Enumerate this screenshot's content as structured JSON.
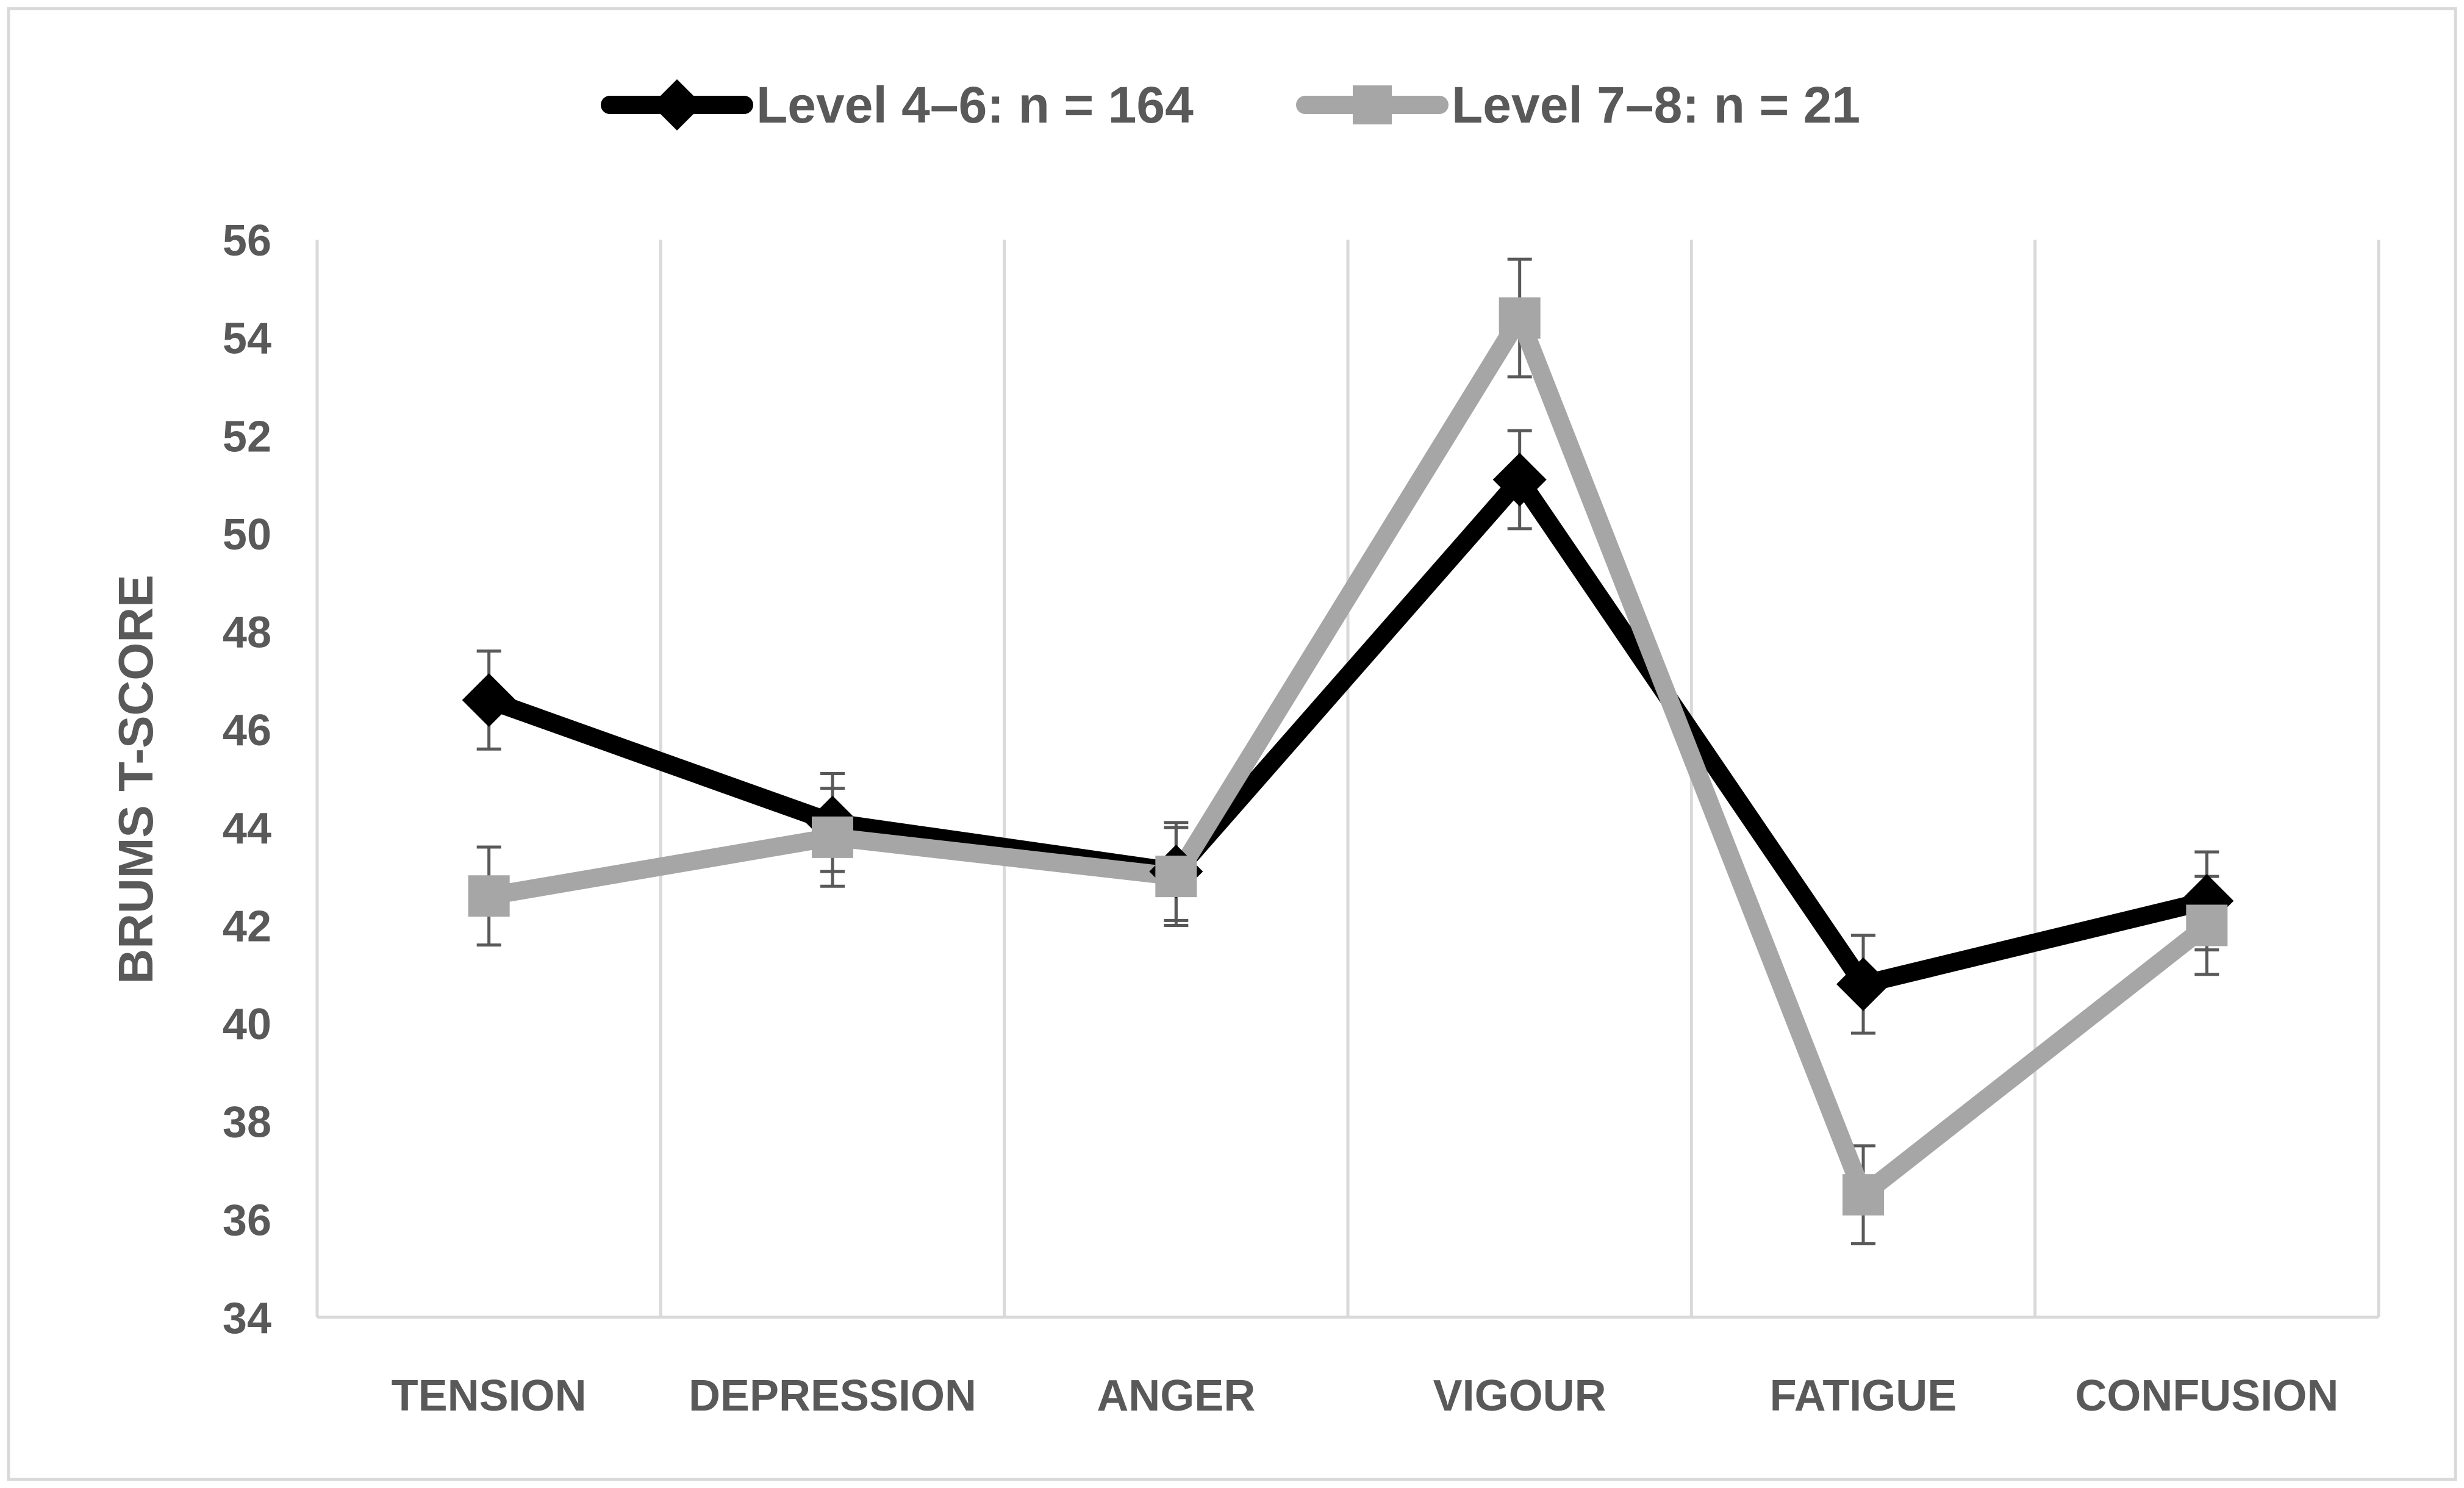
{
  "chart_data": {
    "type": "line",
    "title": "",
    "xlabel": "",
    "ylabel": "BRUMS T-SCORE",
    "ylim": [
      34,
      56
    ],
    "y_ticks": [
      "34",
      "36",
      "38",
      "40",
      "42",
      "44",
      "46",
      "48",
      "50",
      "52",
      "54",
      "56"
    ],
    "categories": [
      "TENSION",
      "DEPRESSION",
      "ANGER",
      "VIGOUR",
      "FATIGUE",
      "CONFUSION"
    ],
    "grid": "vertical",
    "legend_position": "top-center",
    "series": [
      {
        "name": "Level 4–6: n = 164",
        "color": "#000000",
        "marker": "diamond",
        "values": [
          46.6,
          44.1,
          43.1,
          51.1,
          40.8,
          42.5
        ],
        "error": [
          1.0,
          1.0,
          1.0,
          1.0,
          1.0,
          1.0
        ]
      },
      {
        "name": "Level 7–8: n = 21",
        "color": "#a6a6a6",
        "marker": "square",
        "values": [
          42.6,
          43.8,
          43.0,
          54.4,
          36.5,
          42.0
        ],
        "error": [
          1.0,
          1.0,
          1.0,
          1.2,
          1.0,
          1.0
        ]
      }
    ]
  }
}
